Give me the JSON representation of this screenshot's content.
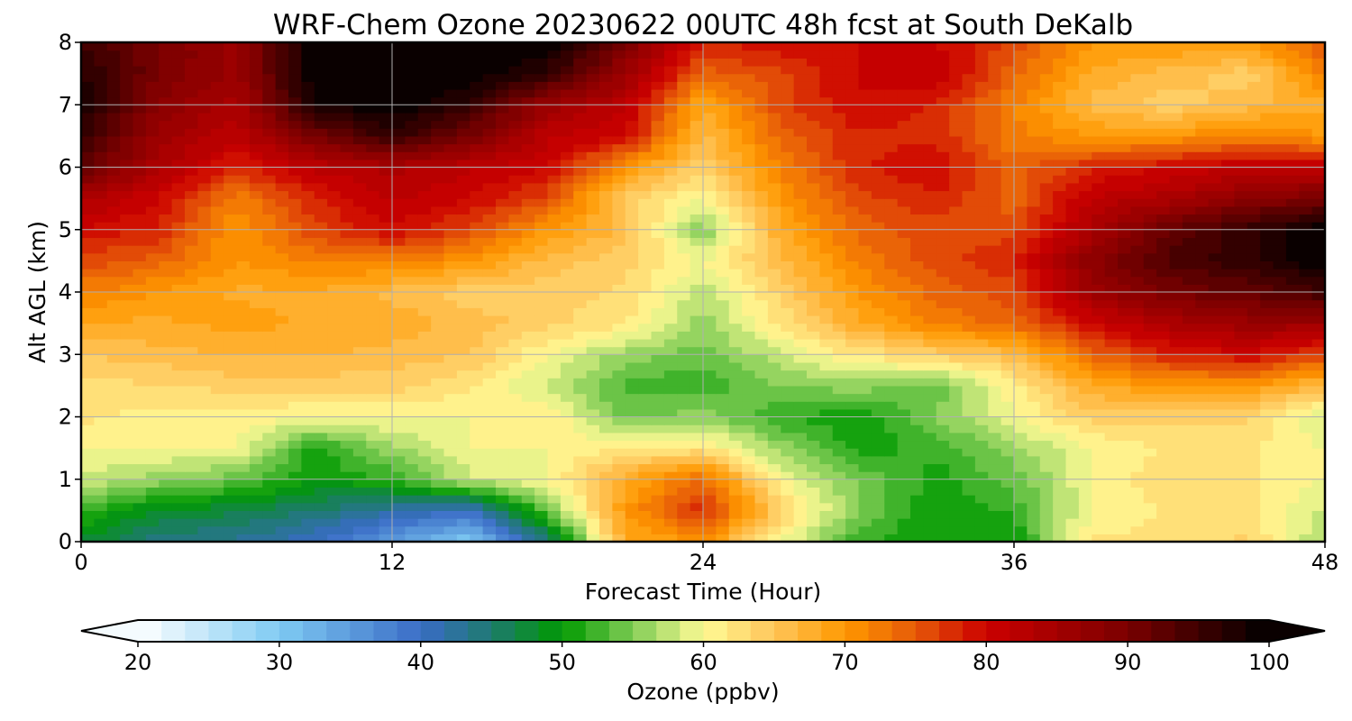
{
  "chart_data": {
    "type": "heatmap",
    "title": "WRF-Chem Ozone  20230622 00UTC 48h fcst at South DeKalb",
    "xlabel": "Forecast Time (Hour)",
    "ylabel": "Alt AGL (km)",
    "xlim": [
      0,
      48
    ],
    "ylim": [
      0,
      8
    ],
    "xticks": [
      "0",
      "12",
      "24",
      "36",
      "48"
    ],
    "yticks": [
      "0",
      "1",
      "2",
      "3",
      "4",
      "5",
      "6",
      "7",
      "8"
    ],
    "grid": true,
    "x_hours": [
      0,
      3,
      6,
      9,
      12,
      15,
      18,
      21,
      24,
      27,
      30,
      33,
      36,
      39,
      42,
      45,
      48
    ],
    "z_km": [
      0,
      0.5,
      1,
      1.5,
      2,
      2.5,
      3,
      3.5,
      4,
      4.5,
      5,
      5.5,
      6,
      6.5,
      7,
      7.5,
      8
    ],
    "values": [
      [
        48,
        44,
        43,
        40,
        35,
        30,
        44,
        68,
        70,
        60,
        52,
        50,
        50,
        62,
        62,
        64,
        56
      ],
      [
        52,
        48,
        47,
        45,
        42,
        40,
        54,
        70,
        78,
        64,
        55,
        50,
        52,
        60,
        62,
        62,
        58
      ],
      [
        58,
        56,
        54,
        50,
        52,
        58,
        60,
        68,
        74,
        60,
        55,
        51,
        54,
        60,
        63,
        62,
        60
      ],
      [
        60,
        60,
        60,
        51,
        56,
        60,
        60,
        62,
        62,
        56,
        51,
        52,
        56,
        60,
        62,
        62,
        60
      ],
      [
        62,
        61,
        61,
        60,
        60,
        60,
        62,
        54,
        56,
        52,
        50,
        55,
        60,
        64,
        64,
        64,
        58
      ],
      [
        63,
        63,
        64,
        64,
        64,
        62,
        58,
        53,
        52,
        55,
        56,
        54,
        61,
        68,
        70,
        70,
        66
      ],
      [
        65,
        66,
        67,
        67,
        66,
        65,
        60,
        56,
        54,
        58,
        62,
        64,
        66,
        74,
        78,
        80,
        76
      ],
      [
        68,
        68,
        69,
        68,
        68,
        66,
        64,
        62,
        56,
        62,
        68,
        72,
        74,
        80,
        84,
        86,
        86
      ],
      [
        72,
        70,
        68,
        68,
        66,
        64,
        64,
        63,
        57,
        64,
        70,
        74,
        76,
        86,
        90,
        92,
        95
      ],
      [
        76,
        74,
        70,
        72,
        72,
        70,
        66,
        64,
        60,
        66,
        72,
        76,
        78,
        88,
        94,
        96,
        100
      ],
      [
        80,
        78,
        70,
        76,
        80,
        76,
        70,
        66,
        55,
        68,
        74,
        76,
        76,
        84,
        92,
        96,
        100
      ],
      [
        84,
        80,
        72,
        78,
        82,
        80,
        76,
        64,
        60,
        70,
        76,
        78,
        74,
        82,
        84,
        88,
        90
      ],
      [
        92,
        84,
        78,
        82,
        84,
        82,
        80,
        70,
        64,
        72,
        78,
        80,
        74,
        78,
        80,
        82,
        82
      ],
      [
        96,
        86,
        82,
        90,
        96,
        90,
        82,
        80,
        66,
        74,
        78,
        78,
        72,
        70,
        70,
        72,
        70
      ],
      [
        98,
        88,
        84,
        98,
        100,
        96,
        86,
        82,
        68,
        76,
        80,
        78,
        72,
        66,
        64,
        66,
        68
      ],
      [
        97,
        90,
        86,
        100,
        100,
        100,
        96,
        86,
        74,
        76,
        80,
        82,
        74,
        68,
        66,
        64,
        72
      ],
      [
        95,
        90,
        86,
        100,
        100,
        100,
        100,
        90,
        78,
        80,
        80,
        80,
        76,
        70,
        70,
        70,
        75
      ]
    ],
    "colorbar": {
      "label": "Ozone  (ppbv)",
      "min": 20,
      "max": 100,
      "ticks": [
        "20",
        "30",
        "40",
        "50",
        "60",
        "70",
        "80",
        "90",
        "100"
      ],
      "extend": "both",
      "stops": [
        {
          "v": 20,
          "c": "#ffffff"
        },
        {
          "v": 30,
          "c": "#7fcbf3"
        },
        {
          "v": 40,
          "c": "#3a6cc6"
        },
        {
          "v": 45,
          "c": "#1e7a70"
        },
        {
          "v": 50,
          "c": "#009900"
        },
        {
          "v": 55,
          "c": "#80cc55"
        },
        {
          "v": 60,
          "c": "#fffb96"
        },
        {
          "v": 65,
          "c": "#ffc55a"
        },
        {
          "v": 70,
          "c": "#ff9900"
        },
        {
          "v": 75,
          "c": "#e65a08"
        },
        {
          "v": 80,
          "c": "#cc0000"
        },
        {
          "v": 90,
          "c": "#7a0000"
        },
        {
          "v": 100,
          "c": "#000000"
        }
      ]
    }
  }
}
